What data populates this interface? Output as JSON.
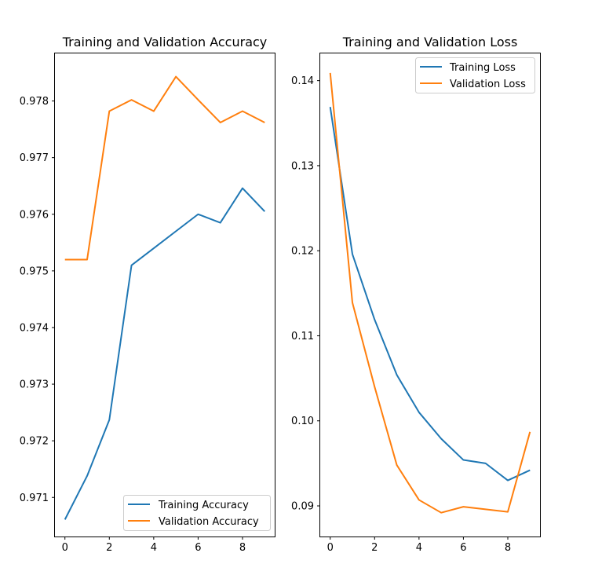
{
  "chart_data": [
    {
      "type": "line",
      "title": "Training and Validation Accuracy",
      "xlabel": "",
      "ylabel": "",
      "x": [
        0,
        1,
        2,
        3,
        4,
        5,
        6,
        7,
        8,
        9
      ],
      "xlim": [
        -0.45,
        9.45
      ],
      "ylim": [
        0.97031,
        0.97884
      ],
      "x_ticks": [
        0,
        2,
        4,
        6,
        8
      ],
      "y_ticks": [
        0.971,
        0.972,
        0.973,
        0.974,
        0.975,
        0.976,
        0.977,
        0.978
      ],
      "legend_position": "lower-right",
      "grid": false,
      "series": [
        {
          "name": "Training Accuracy",
          "color": "#1f77b4",
          "values": [
            0.97061,
            0.97138,
            0.97237,
            0.9751,
            0.9754,
            0.9757,
            0.976,
            0.97585,
            0.97646,
            0.97605
          ]
        },
        {
          "name": "Validation Accuracy",
          "color": "#ff7f0e",
          "values": [
            0.9752,
            0.9752,
            0.97782,
            0.97802,
            0.97782,
            0.97843,
            0.97802,
            0.97762,
            0.97782,
            0.97762
          ]
        }
      ]
    },
    {
      "type": "line",
      "title": "Training and Validation Loss",
      "xlabel": "",
      "ylabel": "",
      "x": [
        0,
        1,
        2,
        3,
        4,
        5,
        6,
        7,
        8,
        9
      ],
      "xlim": [
        -0.45,
        9.45
      ],
      "ylim": [
        0.0864,
        0.1432
      ],
      "x_ticks": [
        0,
        2,
        4,
        6,
        8
      ],
      "y_ticks": [
        0.09,
        0.1,
        0.11,
        0.12,
        0.13,
        0.14
      ],
      "legend_position": "top-right",
      "grid": false,
      "series": [
        {
          "name": "Training Loss",
          "color": "#1f77b4",
          "values": [
            0.1369,
            0.1196,
            0.1119,
            0.1054,
            0.101,
            0.0979,
            0.0954,
            0.095,
            0.093,
            0.0942
          ]
        },
        {
          "name": "Validation Loss",
          "color": "#ff7f0e",
          "values": [
            0.1409,
            0.1139,
            0.104,
            0.0948,
            0.0907,
            0.0892,
            0.0899,
            0.0896,
            0.0893,
            0.0987
          ]
        }
      ]
    }
  ]
}
